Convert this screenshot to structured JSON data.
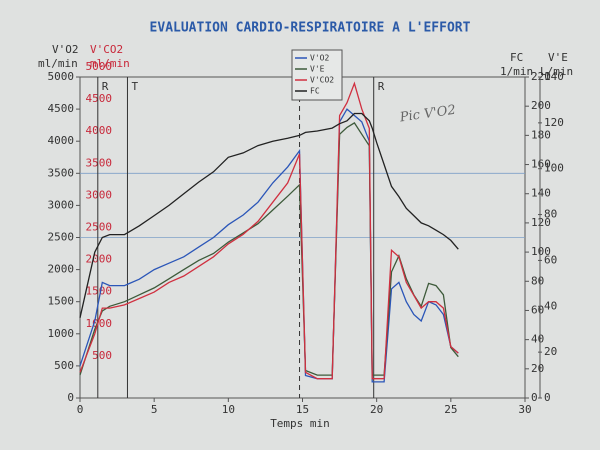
{
  "chart_data": {
    "type": "line",
    "title": "EVALUATION CARDIO-RESPIRATOIRE A L'EFFORT",
    "xlabel": "Temps  min",
    "y_axis_labels": {
      "o2": "V'O2",
      "o2_unit": "ml/min",
      "co2": "V'CO2",
      "co2_unit": "ml/min",
      "fc": "FC",
      "fc_unit": "1/min",
      "ve": "V'E",
      "ve_unit": "L/min"
    },
    "annotations": [
      {
        "text": "R",
        "x": 1.2
      },
      {
        "text": "T",
        "x": 3.2
      },
      {
        "text": "R",
        "x": 19.8
      }
    ],
    "dashed_marker_x": 14.8,
    "handwritten_note": "Pic V'O2",
    "x": [
      0,
      1,
      1.5,
      2,
      3,
      4,
      5,
      6,
      7,
      8,
      9,
      10,
      11,
      12,
      13,
      14,
      14.8,
      15.2,
      16,
      17,
      17.5,
      18,
      18.5,
      19,
      19.5,
      19.7,
      20,
      20.5,
      21,
      21.5,
      22,
      22.5,
      23,
      23.5,
      24,
      24.5,
      25,
      25.5
    ],
    "xlim": [
      0,
      30
    ],
    "xticks": [
      0,
      5,
      10,
      15,
      20,
      25,
      30
    ],
    "ylim": [
      0,
      5000
    ],
    "yticks": [
      0,
      500,
      1000,
      1500,
      2000,
      2500,
      3000,
      3500,
      4000,
      4500,
      5000
    ],
    "y2lim": [
      0,
      220
    ],
    "y2ticks": [
      0,
      20,
      40,
      60,
      80,
      100,
      120,
      140,
      160,
      180,
      200,
      220
    ],
    "y3lim": [
      0,
      140
    ],
    "y3ticks": [
      0,
      20,
      40,
      60,
      80,
      100,
      120,
      140
    ],
    "grid": true,
    "series": [
      {
        "name": "V'O2",
        "color": "#2b56b8",
        "values": [
          500,
          1200,
          1800,
          1750,
          1750,
          1850,
          2000,
          2100,
          2200,
          2350,
          2500,
          2700,
          2850,
          3050,
          3350,
          3600,
          3850,
          350,
          300,
          300,
          4300,
          4500,
          4400,
          4300,
          4000,
          250,
          250,
          250,
          1700,
          1800,
          1500,
          1300,
          1200,
          1500,
          1450,
          1300,
          800,
          700
        ]
      },
      {
        "name": "V'E",
        "color": "#3d5a3a",
        "axis": "y3",
        "values": [
          10,
          30,
          38,
          40,
          42,
          45,
          48,
          52,
          56,
          60,
          63,
          68,
          72,
          76,
          82,
          88,
          93,
          12,
          10,
          10,
          115,
          118,
          120,
          115,
          110,
          10,
          10,
          10,
          55,
          62,
          52,
          45,
          40,
          50,
          49,
          45,
          22,
          18
        ]
      },
      {
        "name": "V'CO2",
        "color": "#d03040",
        "values": [
          400,
          1000,
          1400,
          1400,
          1450,
          1550,
          1650,
          1800,
          1900,
          2050,
          2200,
          2400,
          2550,
          2750,
          3050,
          3350,
          3800,
          400,
          300,
          300,
          4400,
          4600,
          4900,
          4500,
          4200,
          300,
          300,
          300,
          2300,
          2200,
          1800,
          1600,
          1400,
          1500,
          1500,
          1400,
          800,
          700
        ]
      },
      {
        "name": "FC",
        "color": "#222222",
        "axis": "y2",
        "values": [
          55,
          100,
          110,
          112,
          112,
          118,
          125,
          132,
          140,
          148,
          155,
          165,
          168,
          173,
          176,
          178,
          180,
          182,
          183,
          185,
          188,
          190,
          195,
          195,
          190,
          185,
          175,
          160,
          145,
          138,
          130,
          125,
          120,
          118,
          115,
          112,
          108,
          102
        ]
      }
    ]
  }
}
